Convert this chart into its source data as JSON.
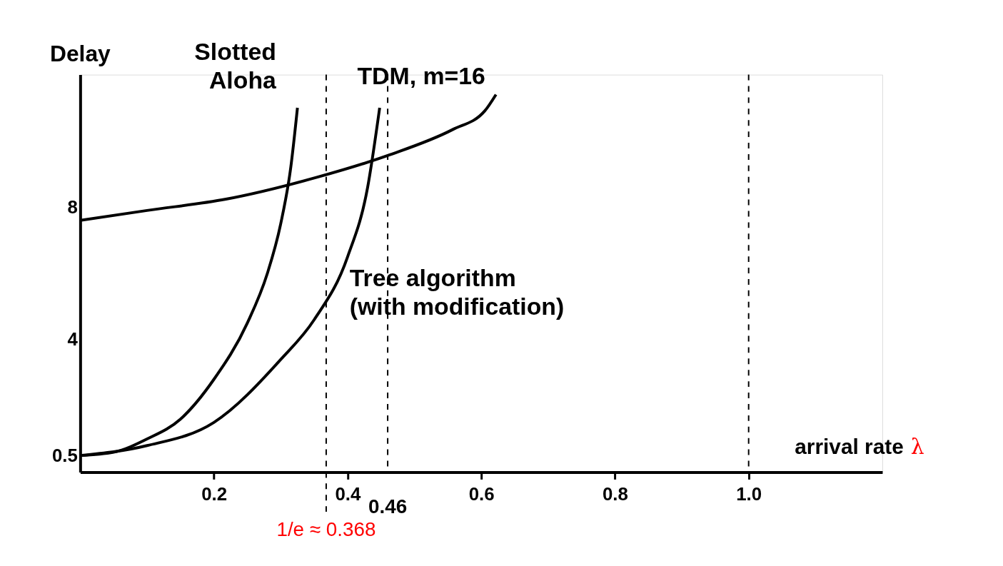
{
  "chart_data": {
    "type": "line",
    "xlabel": "arrival rate λ",
    "ylabel": "Delay",
    "xlim": [
      0,
      1.2
    ],
    "ylim": [
      0,
      12
    ],
    "xticks": [
      0.2,
      0.4,
      0.6,
      0.8,
      {
        "value": 1.0,
        "label": "1.0"
      }
    ],
    "yticks": [
      0.5,
      4,
      8
    ],
    "x": [
      0,
      0.05,
      0.1,
      0.15,
      0.2,
      0.25,
      0.28,
      0.3,
      0.315,
      0.325
    ],
    "series": [
      {
        "name": "Slotted Aloha",
        "color": "#000000",
        "values": [
          0.5,
          0.6,
          1.0,
          1.6,
          2.8,
          4.5,
          6.0,
          7.5,
          9.2,
          11.0
        ]
      },
      {
        "name": "Tree algorithm (with modification)",
        "color": "#000000",
        "x": [
          0,
          0.1,
          0.2,
          0.3,
          0.35,
          0.4,
          0.43,
          0.448
        ],
        "values": [
          0.5,
          0.8,
          1.5,
          3.4,
          4.6,
          6.5,
          8.6,
          11.0
        ]
      },
      {
        "name": "TDM, m=16",
        "color": "#000000",
        "x": [
          0,
          0.1,
          0.218,
          0.354,
          0.463,
          0.557,
          0.605,
          0.622
        ],
        "values": [
          7.6,
          7.9,
          8.24,
          8.9,
          9.58,
          10.34,
          10.9,
          11.4
        ]
      }
    ],
    "ref_lines": [
      {
        "axis": "x",
        "value": 0.368,
        "label": "1/e ≈ 0.368",
        "color": "#000000",
        "line_style": "dashed"
      },
      {
        "axis": "x",
        "value": 0.46,
        "label": "0.46",
        "color": "#000000",
        "line_style": "dashed"
      },
      {
        "axis": "x",
        "value": 1.0,
        "color": "#000000",
        "line_style": "dashed"
      }
    ],
    "grid": false,
    "marker": "none",
    "line_style": "solid"
  }
}
